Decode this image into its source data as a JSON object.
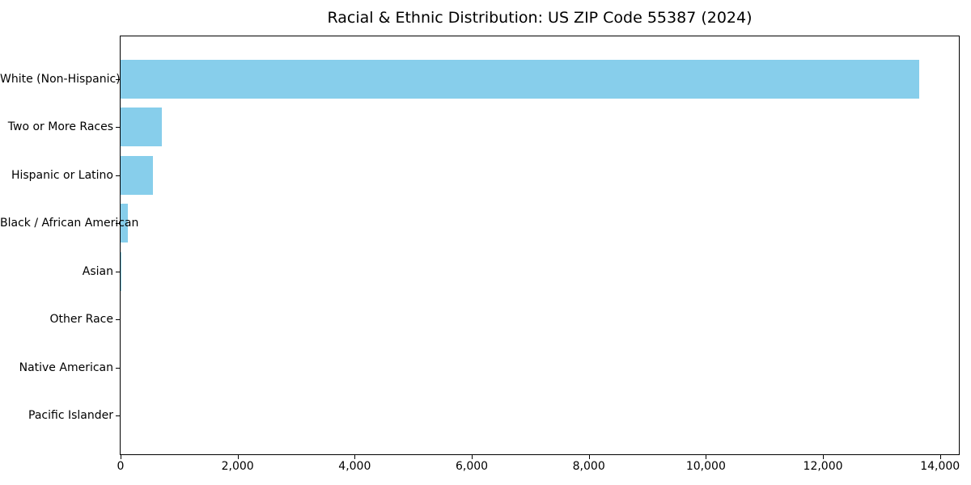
{
  "chart_data": {
    "type": "bar",
    "orientation": "horizontal",
    "title": "Racial & Ethnic Distribution: US ZIP Code 55387 (2024)",
    "categories": [
      "White (Non-Hispanic)",
      "Two or More Races",
      "Hispanic or Latino",
      "Black / African American",
      "Asian",
      "Other Race",
      "Native American",
      "Pacific Islander"
    ],
    "values": [
      13640,
      700,
      550,
      120,
      15,
      0,
      0,
      0
    ],
    "xlabel": "",
    "ylabel": "",
    "xlim": [
      0,
      14322
    ],
    "xticks": {
      "values": [
        0,
        2000,
        4000,
        6000,
        8000,
        10000,
        12000,
        14000
      ],
      "labels": [
        "0",
        "2,000",
        "4,000",
        "6,000",
        "8,000",
        "10,000",
        "12,000",
        "14,000"
      ]
    },
    "grid": false,
    "legend": null,
    "bar_color": "#87CEEB",
    "axis_color": "#000000",
    "text_color": "#000000",
    "background_color": "#ffffff"
  }
}
